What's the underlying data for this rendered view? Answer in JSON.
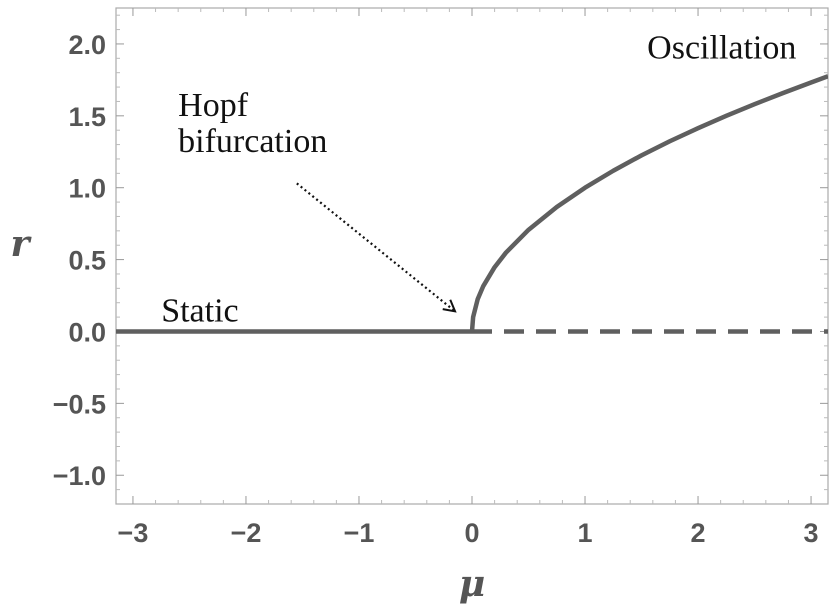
{
  "chart_data": {
    "type": "line",
    "title": "",
    "xlabel": "μ",
    "ylabel": "r",
    "xlim": [
      -3.15,
      3.15
    ],
    "ylim": [
      -1.2,
      2.25
    ],
    "grid": false,
    "x_ticks": [
      -3,
      -2,
      -1,
      0,
      1,
      2,
      3
    ],
    "x_tick_labels": [
      "−3",
      "−2",
      "−1",
      "0",
      "1",
      "2",
      "3"
    ],
    "y_ticks": [
      -1.0,
      -0.5,
      0.0,
      0.5,
      1.0,
      1.5,
      2.0
    ],
    "y_tick_labels": [
      "−1.0",
      "−0.5",
      "0.0",
      "0.5",
      "1.0",
      "1.5",
      "2.0"
    ],
    "series": [
      {
        "style": "solid",
        "color": "#5f5f5f",
        "x": [
          -3.15,
          0
        ],
        "y": [
          0,
          0
        ]
      },
      {
        "style": "dashed",
        "color": "#5f5f5f",
        "x": [
          0,
          3.15
        ],
        "y": [
          0,
          0
        ]
      },
      {
        "style": "solid",
        "color": "#5f5f5f",
        "x": [
          0,
          0.01,
          0.05,
          0.1,
          0.2,
          0.3,
          0.5,
          0.75,
          1.0,
          1.25,
          1.5,
          1.75,
          2.0,
          2.25,
          2.5,
          2.75,
          3.0,
          3.15
        ],
        "y": [
          0,
          0.1,
          0.224,
          0.316,
          0.447,
          0.548,
          0.707,
          0.866,
          1.0,
          1.118,
          1.225,
          1.323,
          1.414,
          1.5,
          1.581,
          1.658,
          1.732,
          1.775
        ]
      }
    ],
    "annotations": [
      {
        "text": "Oscillation",
        "x": 1.55,
        "y": 1.9
      },
      {
        "text": "Hopf",
        "x": -2.6,
        "y": 1.5
      },
      {
        "text": "bifurcation",
        "x": -2.6,
        "y": 1.25
      },
      {
        "text": "Static",
        "x": -2.75,
        "y": 0.07
      }
    ],
    "arrow": {
      "from": [
        -1.55,
        1.03
      ],
      "to": [
        -0.15,
        0.14
      ],
      "style": "dotted"
    }
  }
}
